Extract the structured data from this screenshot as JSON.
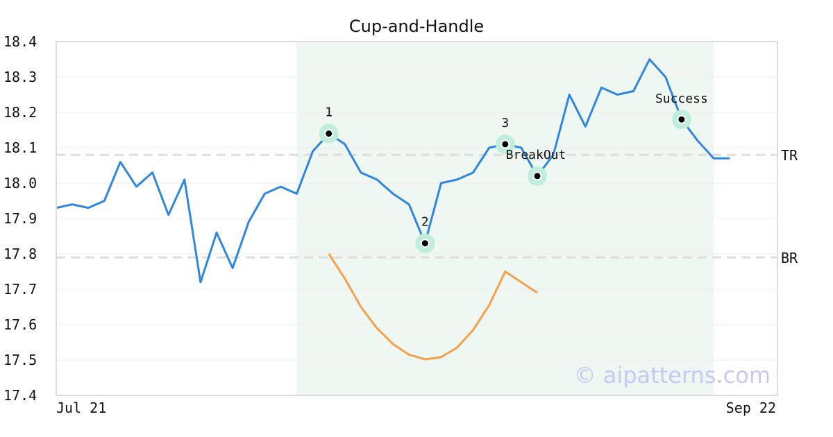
{
  "chart_data": {
    "type": "line",
    "title": "Cup-and-Handle",
    "ylim": [
      17.4,
      18.4
    ],
    "yticks": [
      "18.4",
      "18.3",
      "18.2",
      "18.1",
      "18.0",
      "17.9",
      "17.8",
      "17.7",
      "17.6",
      "17.5",
      "17.4"
    ],
    "x_tick_labels": [
      "Jul 21",
      "Sep 22"
    ],
    "grid": true,
    "colors": {
      "price": "#2e86de",
      "cup": "#f5a04a",
      "highlight": "#eef7f2",
      "marker_halo": "#bfeedd",
      "level": "#dddddd",
      "watermark": "#c8c8f5"
    },
    "series": [
      {
        "values": [
          17.93,
          17.94,
          17.93,
          17.95,
          18.06,
          17.99,
          18.03,
          17.91,
          18.01,
          17.72,
          17.86,
          17.76,
          17.89,
          17.97,
          17.99,
          17.97,
          18.09,
          18.14,
          18.11,
          18.03,
          18.01,
          17.97,
          17.94,
          17.83,
          18.0,
          18.01,
          18.03,
          18.1,
          18.11,
          18.1,
          18.02,
          18.08,
          18.25,
          18.16,
          18.27,
          18.25,
          18.26,
          18.35,
          18.3,
          18.18,
          18.12,
          18.07,
          18.07
        ]
      },
      {
        "start_index": 17,
        "values": [
          17.8,
          17.73,
          17.65,
          17.59,
          17.545,
          17.515,
          17.502,
          17.508,
          17.535,
          17.585,
          17.655,
          17.75,
          17.72,
          17.69
        ]
      }
    ],
    "highlight_range": {
      "start_index": 15,
      "end_index": 41
    },
    "levels": [
      {
        "label": "TR",
        "value": 18.08
      },
      {
        "label": "BR",
        "value": 17.79
      }
    ],
    "annotations": [
      {
        "label": "1",
        "index": 17,
        "value": 18.14,
        "label_position": "above"
      },
      {
        "label": "2",
        "index": 23,
        "value": 17.83,
        "label_position": "above"
      },
      {
        "label": "3",
        "index": 28,
        "value": 18.11,
        "label_position": "above"
      },
      {
        "label": "BreakOut",
        "index": 30,
        "value": 18.02,
        "label_position": "above"
      },
      {
        "label": "Success",
        "index": 39,
        "value": 18.18,
        "label_position": "above"
      }
    ]
  },
  "watermark": "© aipatterns.com"
}
